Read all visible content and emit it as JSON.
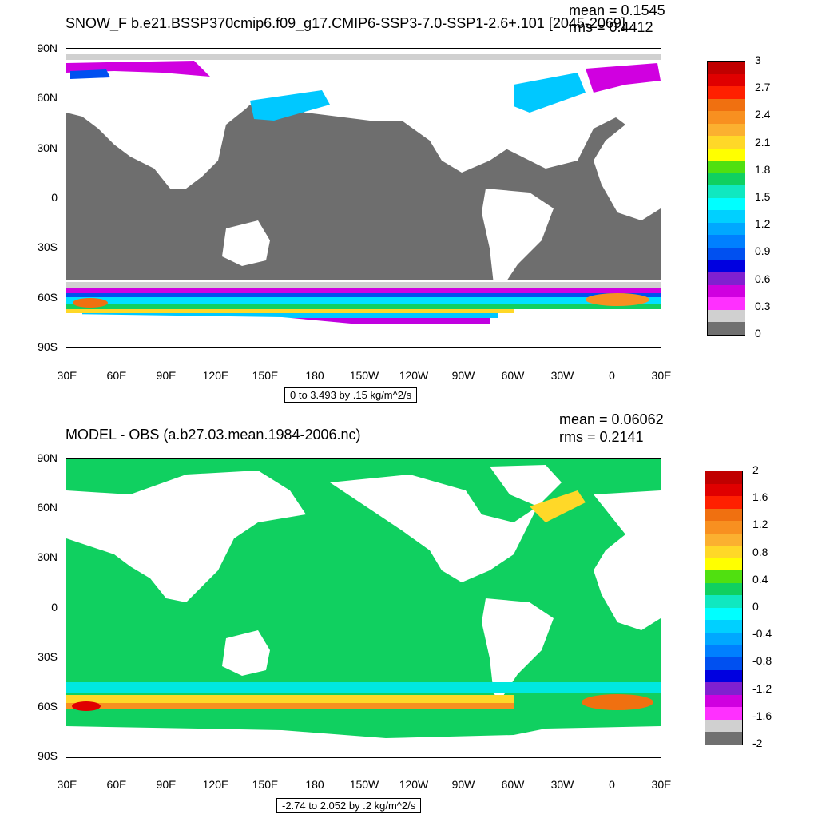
{
  "top": {
    "title": "SNOW_F b.e21.BSSP370cmip6.f09_g17.CMIP6-SSP3-7.0-SSP1-2.6+.101 [2045-2069]",
    "mean": "mean = 0.1545",
    "rms": "rms = 0.4412",
    "range": "0 to 3.493 by .15 kg/m^2/s",
    "colorbar_labels": [
      "3",
      "2.7",
      "2.4",
      "2.1",
      "1.8",
      "1.5",
      "1.2",
      "0.9",
      "0.6",
      "0.3",
      "0"
    ],
    "colorbar_colors": [
      "#c00000",
      "#e00000",
      "#ff2000",
      "#f07010",
      "#f89020",
      "#fbb030",
      "#ffd828",
      "#ffff00",
      "#50e010",
      "#10d060",
      "#10e8c0",
      "#00ffff",
      "#00d0ff",
      "#00a8ff",
      "#0080ff",
      "#0050f0",
      "#0000e0",
      "#8020d0",
      "#d000e0",
      "#ff30ff",
      "#d0d0d0",
      "#707070"
    ]
  },
  "bottom": {
    "title": "MODEL - OBS (a.b27.03.mean.1984-2006.nc)",
    "mean": "mean = 0.06062",
    "rms": "rms = 0.2141",
    "range": "-2.74 to 2.052 by .2 kg/m^2/s",
    "colorbar_labels": [
      "2",
      "1.6",
      "1.2",
      "0.8",
      "0.4",
      "0",
      "-0.4",
      "-0.8",
      "-1.2",
      "-1.6",
      "-2"
    ],
    "colorbar_colors": [
      "#c00000",
      "#e00000",
      "#ff2000",
      "#f07010",
      "#f89020",
      "#fbb030",
      "#ffd828",
      "#ffff00",
      "#50e010",
      "#10d060",
      "#10e8c0",
      "#00ffff",
      "#00d0ff",
      "#00a8ff",
      "#0080ff",
      "#0050f0",
      "#0000e0",
      "#8020d0",
      "#d000e0",
      "#ff30ff",
      "#d0d0d0",
      "#707070"
    ]
  },
  "lat_ticks": [
    "90N",
    "60N",
    "30N",
    "0",
    "30S",
    "60S",
    "90S"
  ],
  "lon_ticks": [
    "30E",
    "60E",
    "90E",
    "120E",
    "150E",
    "180",
    "150W",
    "120W",
    "90W",
    "60W",
    "30W",
    "0",
    "30E"
  ]
}
